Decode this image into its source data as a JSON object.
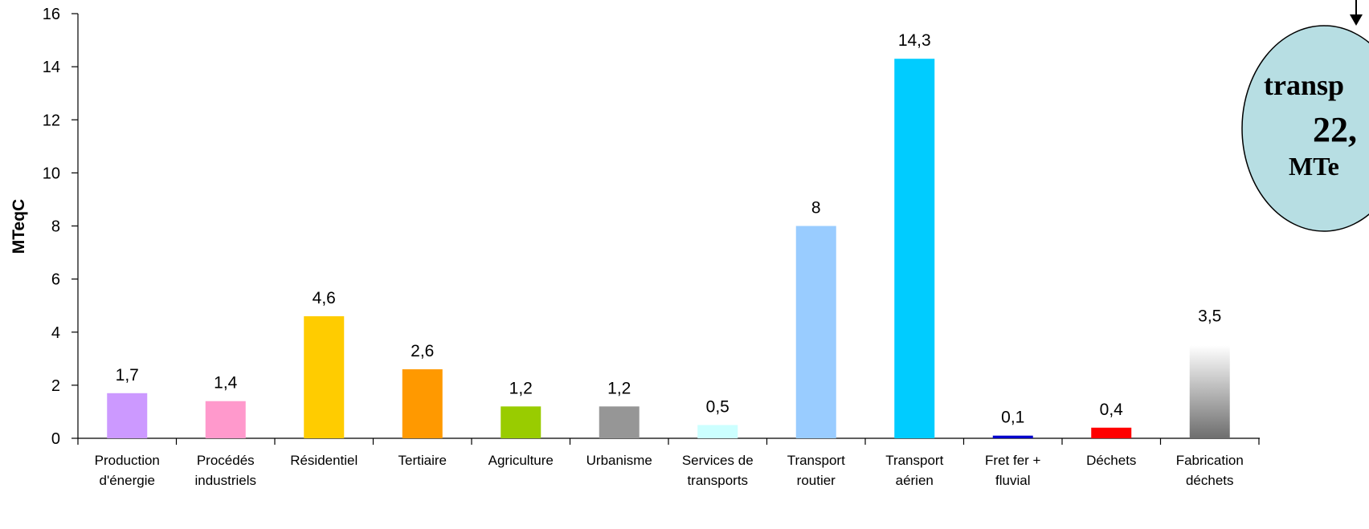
{
  "chart_data": {
    "type": "bar",
    "title": "",
    "xlabel": "",
    "ylabel": "MTeqC",
    "ylim": [
      0,
      16
    ],
    "yticks": [
      0,
      2,
      4,
      6,
      8,
      10,
      12,
      14,
      16
    ],
    "grid": false,
    "categories": [
      [
        "Production",
        "d'énergie"
      ],
      [
        "Procédés",
        "industriels"
      ],
      [
        "Résidentiel"
      ],
      [
        "Tertiaire"
      ],
      [
        "Agriculture"
      ],
      [
        "Urbanisme"
      ],
      [
        "Services de",
        "transports"
      ],
      [
        "Transport",
        "routier"
      ],
      [
        "Transport",
        "aérien"
      ],
      [
        "Fret fer +",
        "fluvial"
      ],
      [
        "Déchets"
      ],
      [
        "Fabrication",
        "déchets"
      ]
    ],
    "values": [
      1.7,
      1.4,
      4.6,
      2.6,
      1.2,
      1.2,
      0.5,
      8,
      14.3,
      0.1,
      0.4,
      3.5
    ],
    "value_labels": [
      "1,7",
      "1,4",
      "4,6",
      "2,6",
      "1,2",
      "1,2",
      "0,5",
      "8",
      "14,3",
      "0,1",
      "0,4",
      "3,5"
    ],
    "colors": [
      "#CC99FF",
      "#FF99CC",
      "#FFCC00",
      "#FF9900",
      "#99CC00",
      "#969696",
      "#CCFFFF",
      "#99CCFF",
      "#00CCFF",
      "#0000CC",
      "#FF0000",
      "gradient-gray"
    ],
    "annotation": {
      "lines": [
        "transp",
        "22,",
        "MTe"
      ],
      "fill": "#B7DEE3",
      "border": "#000000"
    }
  }
}
